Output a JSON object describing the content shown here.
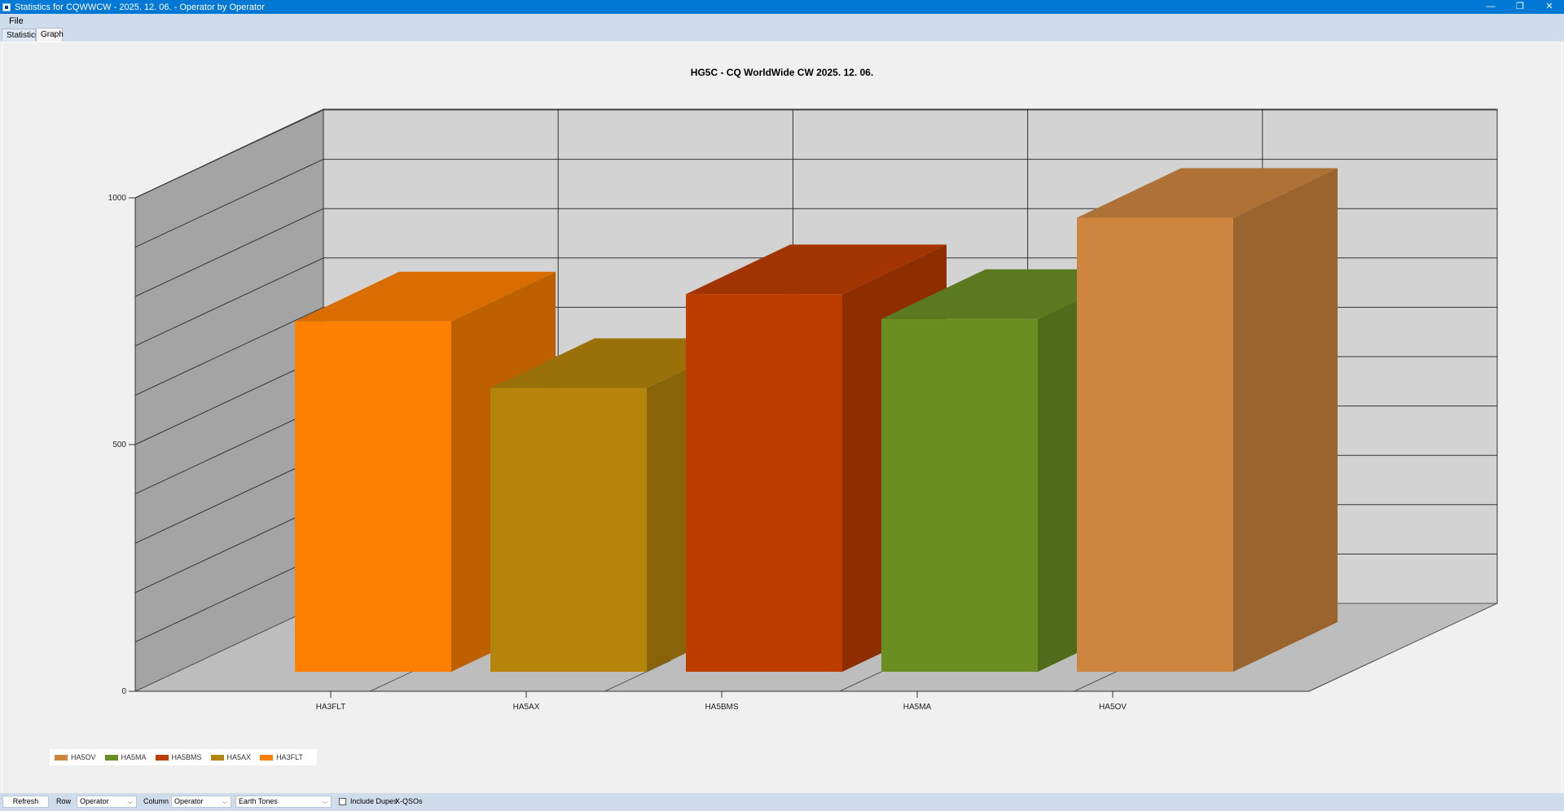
{
  "window": {
    "title": "Statistics for CQWWCW - 2025. 12. 06. - Operator by Operator",
    "controls": {
      "minimize": "—",
      "restore": "❐",
      "close": "✕"
    }
  },
  "menu": {
    "file": "File"
  },
  "tabs": [
    {
      "label": "Statistics"
    },
    {
      "label": "Graph"
    }
  ],
  "chart_data": {
    "type": "bar",
    "title": "HG5C - CQ WorldWide CW 2025. 12. 06.",
    "categories": [
      "HA3FLT",
      "HA5AX",
      "HA5BMS",
      "HA5MA",
      "HA5OV"
    ],
    "values": [
      710,
      575,
      765,
      715,
      920
    ],
    "colors": [
      "#ff8000",
      "#b5840b",
      "#bd3d00",
      "#6b8e23",
      "#cd853f"
    ],
    "yticks": [
      "0",
      "500",
      "1000"
    ],
    "ylim": [
      0,
      1000
    ],
    "grid": true,
    "legend": {
      "position": "bottom-left",
      "entries": [
        "HA5OV",
        "HA5MA",
        "HA5BMS",
        "HA5AX",
        "HA3FLT"
      ],
      "colors": [
        "#cd853f",
        "#6b8e23",
        "#bd3d00",
        "#b5840b",
        "#ff8000"
      ]
    }
  },
  "toolbar": {
    "refresh": "Refresh",
    "row_label": "Row",
    "row_value": "Operator",
    "column_label": "Column",
    "column_value": "Operator",
    "palette_value": "Earth Tones",
    "include_dupes": "Include Dupes",
    "include_dupes_checked": false,
    "xqsos": "X-QSOs"
  }
}
